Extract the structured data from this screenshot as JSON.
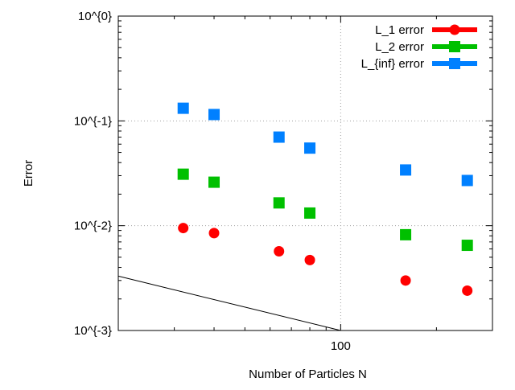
{
  "chart_data": {
    "type": "scatter",
    "xlabel": "Number of Particles N",
    "ylabel": "Error",
    "x_scale": "log",
    "y_scale": "log",
    "xlim": [
      20,
      300
    ],
    "ylim": [
      0.001,
      1
    ],
    "x_ticks": [
      {
        "value": 100,
        "label": "100"
      }
    ],
    "x_minor_ticks": [
      20,
      30,
      40,
      50,
      60,
      70,
      80,
      90,
      200,
      300
    ],
    "y_ticks": [
      {
        "value": 0.001,
        "label": "10^{-3}"
      },
      {
        "value": 0.01,
        "label": "10^{-2}"
      },
      {
        "value": 0.1,
        "label": "10^{-1}"
      },
      {
        "value": 1,
        "label": "10^{0}"
      }
    ],
    "grid": true,
    "legend_position": "top-right",
    "series": [
      {
        "name": "L_1 error",
        "color": "#ff0000",
        "marker": "circle",
        "x": [
          32,
          40,
          64,
          80,
          160,
          250
        ],
        "y": [
          0.0095,
          0.0085,
          0.0057,
          0.0047,
          0.003,
          0.0024
        ]
      },
      {
        "name": "L_2 error",
        "color": "#00c000",
        "marker": "square",
        "x": [
          32,
          40,
          64,
          80,
          160,
          250
        ],
        "y": [
          0.031,
          0.026,
          0.0165,
          0.0132,
          0.0082,
          0.0065
        ]
      },
      {
        "name": "L_{inf} error",
        "color": "#0080ff",
        "marker": "square",
        "x": [
          32,
          40,
          64,
          80,
          160,
          250
        ],
        "y": [
          0.132,
          0.115,
          0.07,
          0.055,
          0.034,
          0.027
        ]
      }
    ],
    "reference_line": {
      "color": "#000000",
      "x": [
        20,
        100
      ],
      "y": [
        0.0033,
        0.001
      ]
    }
  }
}
